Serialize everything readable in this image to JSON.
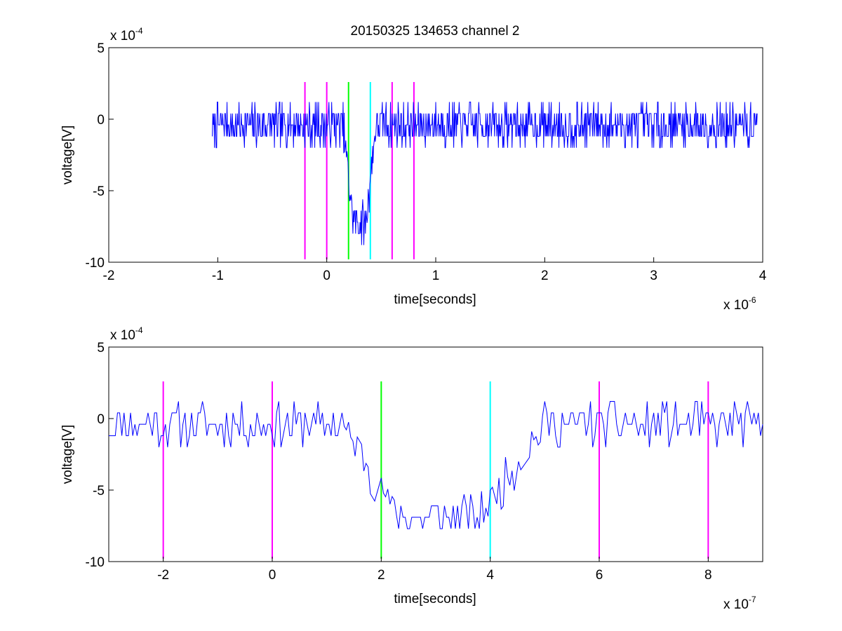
{
  "figure": {
    "title": "20150325 134653 channel 2"
  },
  "chart_data": [
    {
      "type": "line",
      "title": "20150325 134653 channel 2",
      "xlabel": "time[seconds]",
      "ylabel": "voltage[V]",
      "x_multiplier": {
        "base": "x 10",
        "exp": "-6"
      },
      "y_multiplier": {
        "base": "x 10",
        "exp": "-4"
      },
      "xlim": [
        -2,
        4
      ],
      "ylim": [
        -10,
        5
      ],
      "xticks": [
        -2,
        -1,
        0,
        1,
        2,
        3,
        4
      ],
      "yticks": [
        5,
        0,
        -5,
        -10
      ],
      "xtick_labels": [
        "-2",
        "-1",
        "0",
        "1",
        "2",
        "3",
        "4"
      ],
      "ytick_labels": [
        "5",
        "0",
        "-5",
        "-10"
      ],
      "grid": false,
      "series": [
        {
          "color": "#0000ff",
          "signal": {
            "x_start": -1.05,
            "x_end": 3.95,
            "step": 0.005,
            "baseline": -0.4,
            "noise_amplitude": 1.4,
            "dip": {
              "start": 0.15,
              "bottom_start": 0.24,
              "bottom_end": 0.36,
              "end": 0.45,
              "depth": -6.8
            },
            "seed": 7
          }
        }
      ],
      "markers": [
        {
          "x": -0.2,
          "color": "#ff00ff"
        },
        {
          "x": 0.0,
          "color": "#ff00ff"
        },
        {
          "x": 0.2,
          "color": "#00ff00"
        },
        {
          "x": 0.4,
          "color": "#00ffff"
        },
        {
          "x": 0.6,
          "color": "#ff00ff"
        },
        {
          "x": 0.8,
          "color": "#ff00ff"
        }
      ],
      "marker_y_range": [
        -9.8,
        2.6
      ]
    },
    {
      "type": "line",
      "title": "",
      "xlabel": "time[seconds]",
      "ylabel": "voltage[V]",
      "x_multiplier": {
        "base": "x 10",
        "exp": "-7"
      },
      "y_multiplier": {
        "base": "x 10",
        "exp": "-4"
      },
      "xlim": [
        -3,
        9
      ],
      "ylim": [
        -10,
        5
      ],
      "xticks": [
        -2,
        0,
        2,
        4,
        6,
        8
      ],
      "yticks": [
        5,
        0,
        -5,
        -10
      ],
      "xtick_labels": [
        "-2",
        "0",
        "2",
        "4",
        "6",
        "8"
      ],
      "ytick_labels": [
        "5",
        "0",
        "-5",
        "-10"
      ],
      "grid": false,
      "series": [
        {
          "color": "#0000ff",
          "signal": {
            "x_start": -3,
            "x_end": 9,
            "step": 0.04,
            "baseline": -0.4,
            "noise_amplitude": 1.4,
            "dip": {
              "start": 1.3,
              "bottom_start": 2.3,
              "bottom_end": 3.8,
              "end": 5.0,
              "depth": -6.5
            },
            "seed": 11
          }
        }
      ],
      "markers": [
        {
          "x": -2,
          "color": "#ff00ff"
        },
        {
          "x": 0,
          "color": "#ff00ff"
        },
        {
          "x": 2,
          "color": "#00ff00"
        },
        {
          "x": 4,
          "color": "#00ffff"
        },
        {
          "x": 6,
          "color": "#ff00ff"
        },
        {
          "x": 8,
          "color": "#ff00ff"
        }
      ],
      "marker_y_range": [
        -9.8,
        2.6
      ]
    }
  ]
}
